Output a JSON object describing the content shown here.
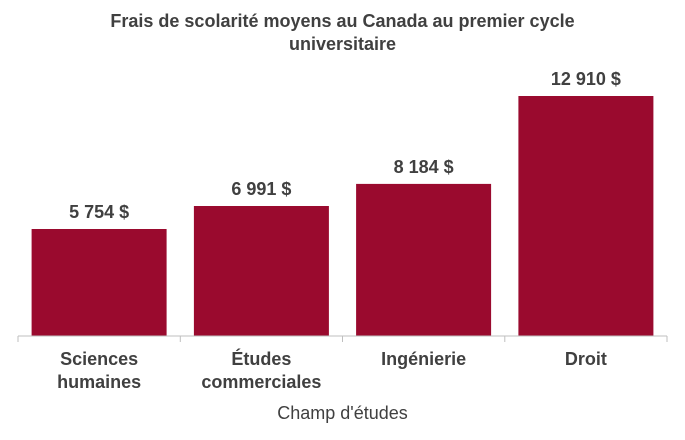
{
  "chart_data": {
    "type": "bar",
    "title_lines": [
      "Frais de scolarité moyens au Canada au premier cycle",
      "universitaire"
    ],
    "xlabel": "Champ d'études",
    "ylabel": "",
    "ylim": [
      0,
      14000
    ],
    "grid": false,
    "legend": "none",
    "bar_color": "#9a0a2e",
    "axis_color": "#bfbfbf",
    "text_color": "#404040",
    "categories": [
      [
        "Sciences",
        "humaines"
      ],
      [
        "Études",
        "commerciales"
      ],
      [
        "Ingénierie"
      ],
      [
        "Droit"
      ]
    ],
    "values": [
      5754,
      6991,
      8184,
      12910
    ],
    "value_labels": [
      "5 754 $",
      "6 991 $",
      "8 184 $",
      "12 910 $"
    ]
  }
}
